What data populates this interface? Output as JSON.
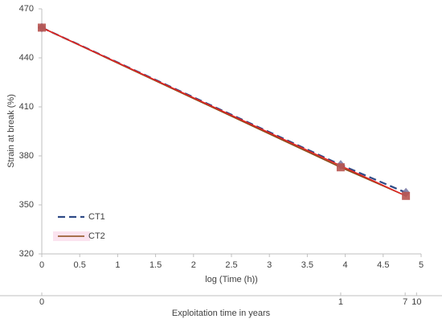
{
  "chart_data": {
    "type": "line",
    "y_label": "Strain at break (%)",
    "x_label": "log (Time (h))",
    "x2_label": "Exploitation time in years",
    "x": [
      0,
      3.94,
      4.8
    ],
    "series": [
      {
        "name": "CT1",
        "color": "#2e4a86",
        "marker_color": "#7b7ba6",
        "dash": true,
        "values": [
          458.5,
          374.5,
          357.5
        ]
      },
      {
        "name": "CT2",
        "color": "#8b4a17",
        "marker_color": "#b85450",
        "dash": false,
        "values": [
          458.5,
          373,
          355.5
        ]
      }
    ],
    "trendline": {
      "color": "#e02424",
      "x": [
        0,
        4.8
      ],
      "values": [
        458.5,
        355.5
      ]
    },
    "xlim": [
      0,
      5
    ],
    "ylim": [
      320,
      470
    ],
    "xticks": [
      0,
      0.5,
      1,
      1.5,
      2,
      2.5,
      3,
      3.5,
      4,
      4.5,
      5
    ],
    "yticks": [
      320,
      350,
      380,
      410,
      440,
      470
    ],
    "x2ticks": [
      {
        "value": 0,
        "label": "0"
      },
      {
        "value": 3.94,
        "label": "1"
      },
      {
        "value": 4.79,
        "label": "7"
      },
      {
        "value": 4.94,
        "label": "10"
      }
    ],
    "legend": "lower left"
  }
}
